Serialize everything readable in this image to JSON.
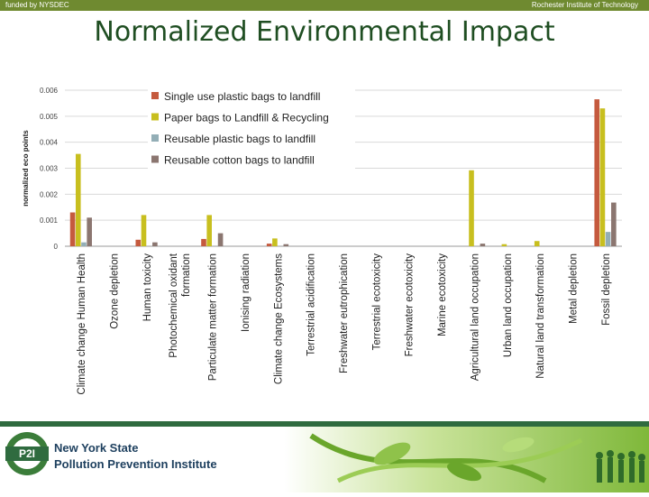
{
  "header": {
    "left_text": "funded by NYSDEC",
    "right_text": "Rochester Institute of Technology"
  },
  "title": "Normalized Environmental Impact",
  "footer": {
    "logo_text": "P2I",
    "org_line1": "New York State",
    "org_line2": "Pollution Prevention Institute"
  },
  "chart_data": {
    "type": "bar",
    "ylabel": "normalized eco points",
    "ylim": [
      0,
      0.006
    ],
    "yticks": [
      "0",
      "0.001",
      "0.002",
      "0.003",
      "0.004",
      "0.005",
      "0.006"
    ],
    "grid": true,
    "legend_position": "top-left",
    "categories": [
      "Climate change Human Health",
      "Ozone depletion",
      "Human toxicity",
      "Photochemical oxidant formation",
      "Particulate matter formation",
      "Ionising radiation",
      "Climate change Ecosystems",
      "Terrestrial acidification",
      "Freshwater eutrophication",
      "Terrestrial ecotoxicity",
      "Freshwater ecotoxicity",
      "Marine ecotoxicity",
      "Agricultural land occupation",
      "Urban land occupation",
      "Natural land transformation",
      "Metal depletion",
      "Fossil depletion"
    ],
    "series": [
      {
        "name": "Single use plastic bags to landfill",
        "color": "#c55a3e",
        "values": [
          0.0013,
          0,
          0.00025,
          0,
          0.00028,
          0,
          0.0001,
          0,
          0,
          0,
          0,
          0,
          0,
          0,
          0,
          0,
          0.00565
        ]
      },
      {
        "name": "Paper bags to Landfill & Recycling",
        "color": "#c8bf1f",
        "values": [
          0.00355,
          0,
          0.0012,
          0,
          0.0012,
          0,
          0.0003,
          0,
          0,
          0,
          0,
          0,
          0.00292,
          8e-05,
          0.0002,
          0,
          0.0053
        ]
      },
      {
        "name": "Reusable plastic bags to landfill",
        "color": "#93aeb6",
        "values": [
          0.00015,
          0,
          0,
          0,
          0,
          0,
          0,
          0,
          0,
          0,
          0,
          0,
          0,
          0,
          0,
          0,
          0.00055
        ]
      },
      {
        "name": "Reusable cotton bags to landfill",
        "color": "#8b7670",
        "values": [
          0.0011,
          0,
          0.00015,
          0,
          0.0005,
          0,
          8e-05,
          0,
          0,
          0,
          0,
          0,
          0.0001,
          0,
          0,
          0,
          0.00168
        ]
      }
    ]
  }
}
